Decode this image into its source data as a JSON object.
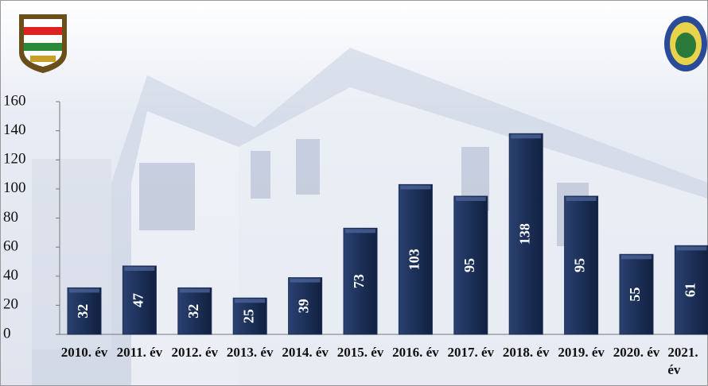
{
  "chart_data": {
    "type": "bar",
    "categories": [
      "2010. év",
      "2011. év",
      "2012. év",
      "2013. év",
      "2014. év",
      "2015. év",
      "2016. év",
      "2017. év",
      "2018. év",
      "2019. év",
      "2020. év",
      "2021. év"
    ],
    "values": [
      32,
      47,
      32,
      25,
      39,
      73,
      103,
      95,
      138,
      95,
      55,
      61
    ],
    "color": "#1c3058",
    "ylim": [
      0,
      160
    ],
    "yticks": [
      0,
      20,
      40,
      60,
      80,
      100,
      120,
      140,
      160
    ],
    "grid": false
  }
}
